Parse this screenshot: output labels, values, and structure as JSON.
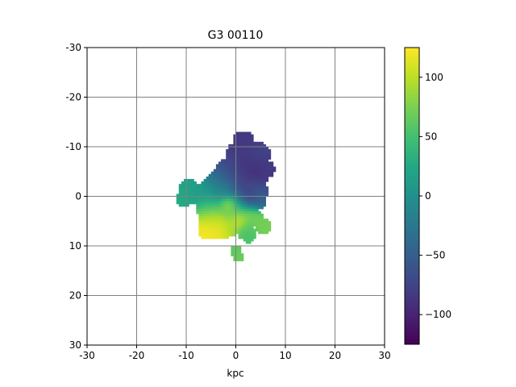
{
  "chart_data": {
    "type": "heatmap",
    "title": "G3   00110",
    "xlabel": "kpc",
    "ylabel": "",
    "xlim": [
      -30,
      30
    ],
    "ylim": [
      -30,
      30
    ],
    "y_axis_inverted": true,
    "grid": true,
    "x_ticks": [
      "-30",
      "-20",
      "-10",
      "0",
      "10",
      "20",
      "30"
    ],
    "y_ticks": [
      "-30",
      "-20",
      "-10",
      "0",
      "10",
      "20",
      "30"
    ],
    "colorbar": {
      "colormap": "viridis",
      "range": [
        -125,
        125
      ],
      "ticks": [
        "100",
        "50",
        "0",
        "−50",
        "−100"
      ]
    },
    "blobs": [
      {
        "x": 1.5,
        "y": -11.0,
        "r": 2.2,
        "value": -85
      },
      {
        "x": 1.0,
        "y": -8.0,
        "r": 3.2,
        "value": -82
      },
      {
        "x": 4.5,
        "y": -8.5,
        "r": 2.4,
        "value": -72
      },
      {
        "x": 3.5,
        "y": -5.0,
        "r": 3.4,
        "value": -98
      },
      {
        "x": 6.0,
        "y": -5.5,
        "r": 1.8,
        "value": -78
      },
      {
        "x": -1.5,
        "y": -5.0,
        "r": 2.8,
        "value": -62
      },
      {
        "x": -3.5,
        "y": -3.0,
        "r": 2.4,
        "value": -35
      },
      {
        "x": 1.0,
        "y": -2.0,
        "r": 2.8,
        "value": -70
      },
      {
        "x": 4.0,
        "y": -1.0,
        "r": 2.4,
        "value": -52
      },
      {
        "x": 2.5,
        "y": 0.5,
        "r": 1.8,
        "value": -92
      },
      {
        "x": 4.5,
        "y": 1.0,
        "r": 1.6,
        "value": -40
      },
      {
        "x": -9.5,
        "y": -1.5,
        "r": 2.0,
        "value": 20
      },
      {
        "x": -10.5,
        "y": 0.5,
        "r": 1.6,
        "value": 28
      },
      {
        "x": -7.5,
        "y": -0.5,
        "r": 2.2,
        "value": 12
      },
      {
        "x": -5.0,
        "y": -1.0,
        "r": 2.6,
        "value": 8
      },
      {
        "x": -2.0,
        "y": -1.0,
        "r": 2.2,
        "value": -5
      },
      {
        "x": 0.5,
        "y": 1.5,
        "r": 1.8,
        "value": 35
      },
      {
        "x": -6.0,
        "y": 2.0,
        "r": 2.2,
        "value": 40
      },
      {
        "x": -3.0,
        "y": 2.5,
        "r": 2.4,
        "value": 48
      },
      {
        "x": -5.5,
        "y": 4.0,
        "r": 2.2,
        "value": 102
      },
      {
        "x": -3.5,
        "y": 4.5,
        "r": 1.8,
        "value": 108
      },
      {
        "x": -1.5,
        "y": 1.5,
        "r": 1.4,
        "value": 120
      },
      {
        "x": -0.5,
        "y": 3.5,
        "r": 1.8,
        "value": 80
      },
      {
        "x": -5.5,
        "y": 6.5,
        "r": 2.2,
        "value": 122
      },
      {
        "x": -3.0,
        "y": 6.5,
        "r": 2.2,
        "value": 116
      },
      {
        "x": -1.0,
        "y": 6.5,
        "r": 1.6,
        "value": 88
      },
      {
        "x": 0.5,
        "y": 5.0,
        "r": 1.4,
        "value": 110
      },
      {
        "x": 2.5,
        "y": 3.5,
        "r": 2.0,
        "value": 75
      },
      {
        "x": 4.0,
        "y": 4.5,
        "r": 1.6,
        "value": 68
      },
      {
        "x": 2.0,
        "y": 7.0,
        "r": 1.8,
        "value": 58
      },
      {
        "x": 5.5,
        "y": 6.0,
        "r": 1.6,
        "value": 72
      },
      {
        "x": 2.5,
        "y": 8.0,
        "r": 1.4,
        "value": 52
      },
      {
        "x": 0.0,
        "y": 11.0,
        "r": 1.2,
        "value": 62
      },
      {
        "x": 0.5,
        "y": 12.2,
        "r": 1.0,
        "value": 68
      }
    ]
  }
}
